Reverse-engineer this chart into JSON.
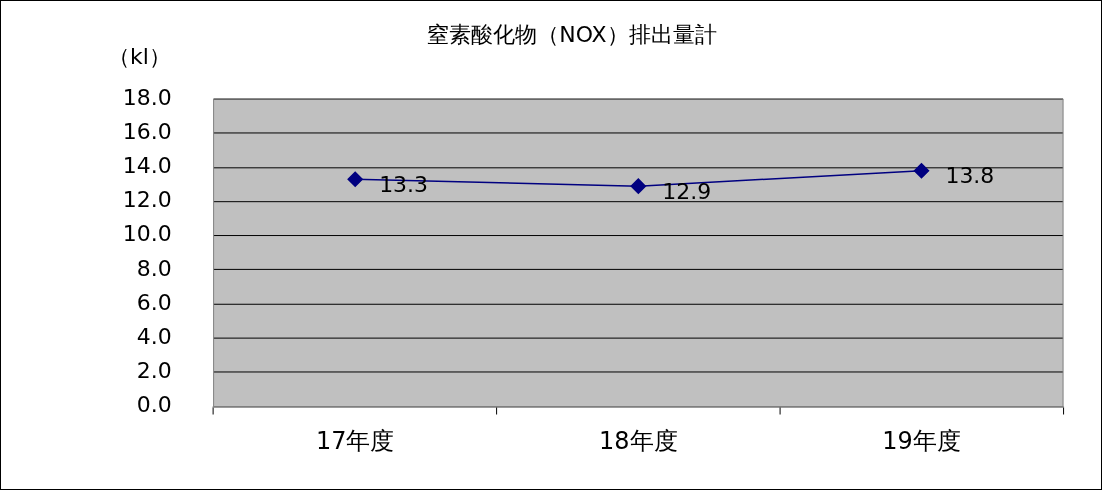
{
  "chart_data": {
    "type": "line",
    "title": "窒素酸化物（NOX）排出量計",
    "ylabel": "（kl）",
    "categories": [
      "17年度",
      "18年度",
      "19年度"
    ],
    "series": [
      {
        "color": "#000080",
        "values": [
          13.3,
          12.9,
          13.8
        ]
      }
    ],
    "ylim": [
      0,
      18
    ],
    "yticks": [
      {
        "value": 0,
        "label": "0.0"
      },
      {
        "value": 2,
        "label": "2.0"
      },
      {
        "value": 4,
        "label": "4.0"
      },
      {
        "value": 6,
        "label": "6.0"
      },
      {
        "value": 8,
        "label": "8.0"
      },
      {
        "value": 10,
        "label": "10.0"
      },
      {
        "value": 12,
        "label": "12.0"
      },
      {
        "value": 14,
        "label": "14.0"
      },
      {
        "value": 16,
        "label": "16.0"
      },
      {
        "value": 18,
        "label": "18.0"
      }
    ],
    "grid": "y",
    "legend": false,
    "marker": "diamond",
    "line_style": "solid",
    "data_labels": true
  }
}
